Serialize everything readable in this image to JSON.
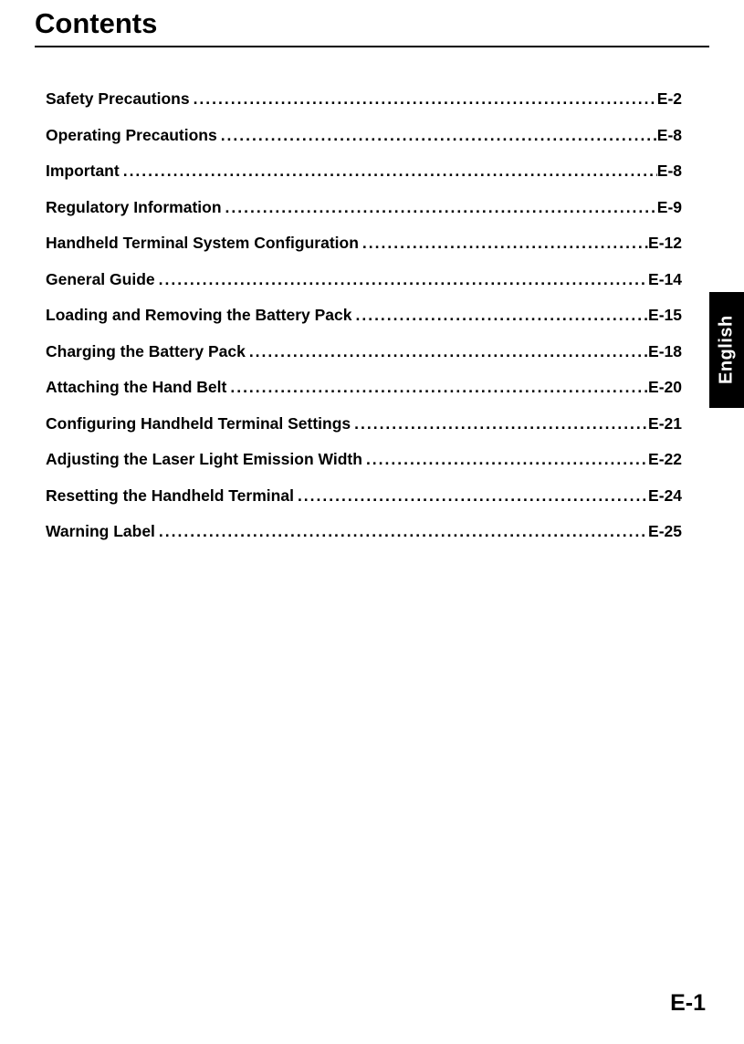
{
  "heading": "Contents",
  "side_tab": "English",
  "page_number": "E-1",
  "toc": [
    {
      "title": "Safety Precautions",
      "page": "E-2"
    },
    {
      "title": "Operating Precautions",
      "page": "E-8"
    },
    {
      "title": "Important",
      "page": "E-8"
    },
    {
      "title": "Regulatory Information",
      "page": "E-9"
    },
    {
      "title": "Handheld Terminal System Configuration",
      "page": "E-12"
    },
    {
      "title": "General Guide",
      "page": "E-14"
    },
    {
      "title": "Loading and Removing the Battery Pack",
      "page": "E-15"
    },
    {
      "title": "Charging the Battery Pack",
      "page": "E-18"
    },
    {
      "title": "Attaching the Hand Belt",
      "page": "E-20"
    },
    {
      "title": "Configuring Handheld Terminal Settings",
      "page": "E-21"
    },
    {
      "title": "Adjusting the Laser Light Emission Width",
      "page": "E-22"
    },
    {
      "title": "Resetting the Handheld Terminal",
      "page": "E-24"
    },
    {
      "title": "Warning Label",
      "page": "E-25"
    }
  ],
  "style": {
    "text_color": "#000000",
    "background": "#ffffff",
    "heading_fontsize": 31,
    "toc_fontsize": 17.5,
    "page_number_fontsize": 25,
    "rule_thickness": 2.5,
    "side_tab_bg": "#000000",
    "side_tab_fg": "#ffffff",
    "font_family": "Arial, Helvetica, sans-serif"
  }
}
